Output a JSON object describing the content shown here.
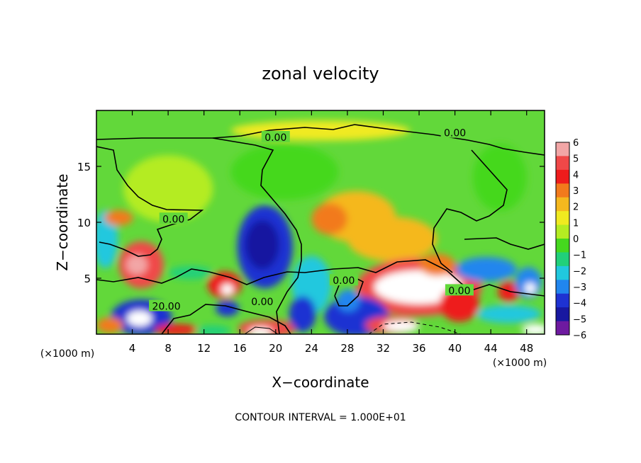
{
  "chart_data": {
    "type": "heatmap",
    "title": "zonal velocity",
    "xlabel": "X−coordinate",
    "ylabel": "Z−coordinate",
    "x_unit_label": "(×1000 m)",
    "y_unit_label": "(×1000 m)",
    "footer": "CONTOUR INTERVAL = 1.000E+01",
    "xlim": [
      0,
      50
    ],
    "ylim": [
      0,
      20
    ],
    "x_ticks": [
      {
        "value": 4,
        "label": "4"
      },
      {
        "value": 8,
        "label": "8"
      },
      {
        "value": 12,
        "label": "12"
      },
      {
        "value": 16,
        "label": "16"
      },
      {
        "value": 20,
        "label": "20"
      },
      {
        "value": 24,
        "label": "24"
      },
      {
        "value": 28,
        "label": "28"
      },
      {
        "value": 32,
        "label": "32"
      },
      {
        "value": 36,
        "label": "36"
      },
      {
        "value": 40,
        "label": "40"
      },
      {
        "value": 44,
        "label": "44"
      },
      {
        "value": 48,
        "label": "48"
      }
    ],
    "y_ticks": [
      {
        "value": 5,
        "label": "5"
      },
      {
        "value": 10,
        "label": "10"
      },
      {
        "value": 15,
        "label": "15"
      }
    ],
    "colorbar": {
      "min": -6,
      "max": 6,
      "labels": [
        "6",
        "5",
        "4",
        "3",
        "2",
        "1",
        "0",
        "−1",
        "−2",
        "−3",
        "−4",
        "−5",
        "−6"
      ],
      "colors": [
        "#f2a6a6",
        "#f04848",
        "#ee1c1c",
        "#f27a1c",
        "#f5b81e",
        "#f0ea20",
        "#b4ec22",
        "#45d81e",
        "#21d07a",
        "#21c8de",
        "#2186ee",
        "#1e32d2",
        "#1818a0",
        "#6e1aa0"
      ]
    },
    "background_color": "#62d83a",
    "contour_labels": [
      {
        "x": 20,
        "y": 17.6,
        "text": "0.00"
      },
      {
        "x": 40,
        "y": 18.0,
        "text": "0.00"
      },
      {
        "x": 8.6,
        "y": 10.3,
        "text": "0.00"
      },
      {
        "x": 7.8,
        "y": 2.5,
        "text": "20.00"
      },
      {
        "x": 18.5,
        "y": 2.9,
        "text": "0.00"
      },
      {
        "x": 27.6,
        "y": 4.8,
        "text": "0.00"
      },
      {
        "x": 40.5,
        "y": 3.9,
        "text": "0.00"
      }
    ],
    "velocity_features": [
      {
        "x": 29,
        "y": 10.5,
        "rx": 4.4,
        "ry": 2.3,
        "value": 2.2
      },
      {
        "x": 26,
        "y": 10.3,
        "rx": 2.0,
        "ry": 1.4,
        "value": 3.2
      },
      {
        "x": 33,
        "y": 8.5,
        "rx": 5.0,
        "ry": 2.0,
        "value": 1.6
      },
      {
        "x": 5.0,
        "y": 6.2,
        "rx": 2.5,
        "ry": 2.1,
        "value": 4.8
      },
      {
        "x": 4.5,
        "y": 6.2,
        "rx": 1.2,
        "ry": 0.9,
        "value": 5.8
      },
      {
        "x": 18.8,
        "y": 7.8,
        "rx": 3.1,
        "ry": 3.7,
        "value": -4.2
      },
      {
        "x": 18.5,
        "y": 8.0,
        "rx": 1.9,
        "ry": 2.2,
        "value": -5.2
      },
      {
        "x": 1.0,
        "y": 8.5,
        "rx": 1.4,
        "ry": 2.6,
        "value": -2.6
      },
      {
        "x": 36,
        "y": 4.2,
        "rx": 7.0,
        "ry": 2.6,
        "value": 4.5
      },
      {
        "x": 36,
        "y": 4.2,
        "rx": 5.0,
        "ry": 1.5,
        "value": 6.4
      },
      {
        "x": 40.5,
        "y": 2.7,
        "rx": 2.2,
        "ry": 1.6,
        "value": 3.6
      },
      {
        "x": 29,
        "y": 1.6,
        "rx": 3.6,
        "ry": 1.8,
        "value": -4.8
      },
      {
        "x": 33,
        "y": 0.8,
        "rx": 3.0,
        "ry": 0.8,
        "value": 4.4
      },
      {
        "x": 34,
        "y": 0.7,
        "rx": 2.0,
        "ry": 0.5,
        "value": 6.4
      },
      {
        "x": 19,
        "y": 0.5,
        "rx": 3.2,
        "ry": 0.8,
        "value": 4.2
      },
      {
        "x": 18.3,
        "y": 0.2,
        "rx": 1.3,
        "ry": 0.4,
        "value": 6.4
      },
      {
        "x": 5.0,
        "y": 1.5,
        "rx": 3.4,
        "ry": 1.6,
        "value": -4.6
      },
      {
        "x": 4.8,
        "y": 1.4,
        "rx": 1.4,
        "ry": 0.7,
        "value": 6.4
      },
      {
        "x": 14.3,
        "y": 4.4,
        "rx": 1.9,
        "ry": 1.2,
        "value": 4.0
      },
      {
        "x": 14.6,
        "y": 4.0,
        "rx": 0.7,
        "ry": 0.5,
        "value": 6.4
      },
      {
        "x": 14.6,
        "y": 2.3,
        "rx": 1.3,
        "ry": 0.7,
        "value": -4.2
      },
      {
        "x": 10.5,
        "y": 5.5,
        "rx": 2.5,
        "ry": 0.6,
        "value": -1.8
      },
      {
        "x": 24,
        "y": 4.4,
        "rx": 2.2,
        "ry": 2.6,
        "value": -2.6
      },
      {
        "x": 23,
        "y": 1.8,
        "rx": 1.5,
        "ry": 1.6,
        "value": -4.6
      },
      {
        "x": 28.1,
        "y": 3.0,
        "rx": 1.3,
        "ry": 1.0,
        "value": -4.0
      },
      {
        "x": 43.5,
        "y": 5.8,
        "rx": 3.4,
        "ry": 1.1,
        "value": -3.6
      },
      {
        "x": 46,
        "y": 3.8,
        "rx": 1.2,
        "ry": 0.9,
        "value": 3.6
      },
      {
        "x": 48.2,
        "y": 4.6,
        "rx": 1.5,
        "ry": 1.4,
        "value": -3.8
      },
      {
        "x": 48.4,
        "y": 4.1,
        "rx": 0.6,
        "ry": 0.5,
        "value": 6.4
      },
      {
        "x": 46,
        "y": 1.8,
        "rx": 3.6,
        "ry": 0.8,
        "value": -2.6
      },
      {
        "x": 49,
        "y": 0.4,
        "rx": 1.5,
        "ry": 0.5,
        "value": 6.4
      },
      {
        "x": 9,
        "y": 0.4,
        "rx": 2.5,
        "ry": 0.5,
        "value": 4.0
      },
      {
        "x": 13,
        "y": 0.3,
        "rx": 2.0,
        "ry": 0.5,
        "value": -1.5
      },
      {
        "x": 1.5,
        "y": 0.8,
        "rx": 1.5,
        "ry": 0.7,
        "value": 3.0
      },
      {
        "x": 25,
        "y": 18.2,
        "rx": 10,
        "ry": 0.9,
        "value": 0.9
      },
      {
        "x": 21,
        "y": 14.5,
        "rx": 6.0,
        "ry": 2.5,
        "value": -0.6
      },
      {
        "x": 8,
        "y": 13.0,
        "rx": 5.0,
        "ry": 3.0,
        "value": -0.4
      },
      {
        "x": 45,
        "y": 14.0,
        "rx": 3.0,
        "ry": 3.0,
        "value": -0.5
      },
      {
        "x": 2.5,
        "y": 10.4,
        "rx": 1.6,
        "ry": 0.7,
        "value": 2.6
      },
      {
        "x": 38,
        "y": 6.2,
        "rx": 2.0,
        "ry": 1.0,
        "value": 2.8
      }
    ]
  }
}
